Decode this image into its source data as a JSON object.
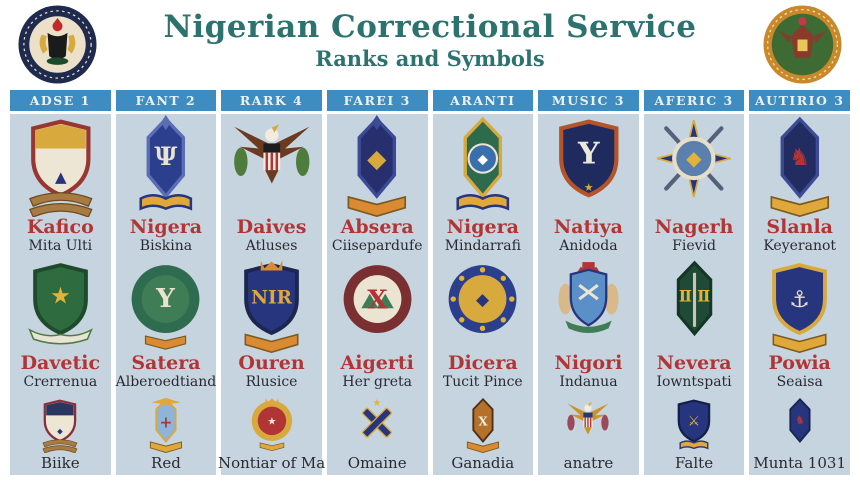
{
  "page": {
    "bg": "#ffffff",
    "panel_bg": "#c6d4df",
    "header_bar_color": "#3e8dc2",
    "title_color": "#2c7370",
    "red_label_color": "#b23535",
    "dark_label_color": "#2a2a32"
  },
  "header": {
    "title": "Nigerian Correctional Service",
    "subtitle": "Ranks and Symbols",
    "logos": {
      "left": {
        "icon": "ministry-seal-logo",
        "ring": "#1e2a4e",
        "field": "#ece0c8",
        "accent": "#c22a2a",
        "detail": "#1b1b1b",
        "gold": "#d8a93c",
        "base": "#1b4a2a"
      },
      "right": {
        "icon": "service-crest-logo",
        "ring": "#c9882a",
        "field": "#3d6b33",
        "accent": "#8a3a2a",
        "crest": "#c03a4a"
      }
    }
  },
  "columns": [
    {
      "header": "ADSE 1",
      "cells": [
        {
          "title": "Kafico",
          "subtitle": "Mita Ulti",
          "icon": "shield-eagle-ribbons-badge-icon",
          "badge": {
            "shape": "shield",
            "field": "#eee6d4",
            "border": "#993632",
            "chief": "#d8a93c",
            "emblem": "▲",
            "emblemColor": "#27357e",
            "emblemY": 80,
            "emblemSize": 18,
            "extras": [
              "ribbons"
            ],
            "extraColor": "#a87b42"
          }
        },
        {
          "title": "Davetic",
          "subtitle": "Crerrenua",
          "icon": "green-shield-laurel-badge-icon",
          "badge": {
            "shape": "shield",
            "field": "#2e6b3f",
            "border": "#1f4a2c",
            "emblem": "★",
            "emblemColor": "#e0b43a",
            "emblemY": 58,
            "emblemSize": 30,
            "extras": [
              "laurel"
            ],
            "extraColor": "#e9e5d6"
          }
        },
        {
          "title": "",
          "subtitle": "Biike",
          "icon": "navy-shield-ribbons-badge-icon",
          "badge": {
            "shape": "shield",
            "field": "#eee6d4",
            "border": "#8a2f3a",
            "chief": "#2a3560",
            "emblem": "◆",
            "emblemColor": "#27357e",
            "emblemY": 80,
            "emblemSize": 16,
            "extras": [
              "ribbons"
            ],
            "extraColor": "#a87b42"
          }
        }
      ]
    },
    {
      "header": "FANT 2",
      "cells": [
        {
          "title": "Nigera",
          "subtitle": "Biskina",
          "icon": "blue-crest-book-badge-icon",
          "badge": {
            "shape": "crest",
            "field": "#2b3f8e",
            "border": "#5a6db5",
            "emblem": "Ψ",
            "emblemColor": "#e9e2d0",
            "emblemY": 60,
            "emblemSize": 30,
            "extras": [
              "finial",
              "book"
            ],
            "extraColor": "#e0a83a"
          }
        },
        {
          "title": "Satera",
          "subtitle": "Alberoedtiand",
          "icon": "green-round-seal-badge-icon",
          "badge": {
            "shape": "round",
            "ring": "#2e6b4f",
            "center": "#3f7d57",
            "emblem": "Y",
            "emblemColor": "#e9e2d0",
            "emblemY": 62,
            "emblemSize": 34,
            "extras": [
              "bannerSmall"
            ],
            "extraColor": "#d98a33"
          }
        },
        {
          "title": "",
          "subtitle": "Red",
          "icon": "eagle-cross-banner-badge-icon",
          "badge": {
            "shape": "crest",
            "field": "#8fb3d9",
            "border": "#d8a93c",
            "emblem": "+",
            "emblemColor": "#b23535",
            "emblemY": 66,
            "emblemSize": 34,
            "extras": [
              "eagleTop",
              "banner"
            ],
            "extraColor": "#e0a83a"
          }
        }
      ]
    },
    {
      "header": "RARK 4",
      "cells": [
        {
          "title": "Daives",
          "subtitle": "Atluses",
          "icon": "brown-eagle-shield-badge-icon",
          "badge": {
            "shape": "eagle",
            "body": "#6b3a20",
            "shieldField": "#f2ece0",
            "stripe": "#b23535",
            "chief": "#1d1d1d",
            "extras": [
              "branches"
            ],
            "extraColor": "#4d7c3c"
          }
        },
        {
          "title": "Ouren",
          "subtitle": "Rlusice",
          "icon": "nir-shield-crown-badge-icon",
          "badge": {
            "shape": "shield",
            "field": "#27357e",
            "border": "#1c2650",
            "emblem": "NIR",
            "emblemColor": "#e0a83a",
            "emblemY": 58,
            "emblemSize": 24,
            "extras": [
              "crown",
              "banner"
            ],
            "extraColor": "#d98a33"
          }
        },
        {
          "title": "",
          "subtitle": "Nontiar of Ma",
          "icon": "gold-crown-round-badge-icon",
          "badge": {
            "shape": "round",
            "ring": "#d8a93c",
            "center": "#b23535",
            "emblem": "★",
            "emblemColor": "#f2ece0",
            "emblemY": 60,
            "emblemSize": 22,
            "extras": [
              "crown",
              "bannerSmall"
            ],
            "extraColor": "#e0a83a"
          }
        }
      ]
    },
    {
      "header": "FAREI 3",
      "cells": [
        {
          "title": "Absera",
          "subtitle": "Ciisepardufe",
          "icon": "navy-crest-banner-badge-icon",
          "badge": {
            "shape": "crest",
            "field": "#272f6e",
            "border": "#3d4b97",
            "emblem": "◆",
            "emblemColor": "#d8a93c",
            "emblemY": 62,
            "emblemSize": 30,
            "extras": [
              "finial",
              "banner"
            ],
            "extraColor": "#d98a33"
          }
        },
        {
          "title": "Aigerti",
          "subtitle": "Her greta",
          "icon": "round-seal-x-badge-icon",
          "badge": {
            "shape": "round",
            "ring": "#7a3030",
            "center": "#ece4d2",
            "emblem": "X",
            "emblemColor": "#b23535",
            "emblemY": 64,
            "emblemSize": 34,
            "extras": [
              "hills"
            ],
            "extraColor": "#3f7d57"
          }
        },
        {
          "title": "",
          "subtitle": "Omaine",
          "icon": "crossed-batons-star-badge-icon",
          "badge": {
            "shape": "crossed",
            "field": "#27357e",
            "trim": "#d8a93c",
            "extras": [
              "starTop"
            ],
            "extraColor": "#e0b43a"
          }
        }
      ]
    },
    {
      "header": "ARANTI",
      "cells": [
        {
          "title": "Nigera",
          "subtitle": "Mindarrafi",
          "icon": "green-crest-disc-badge-icon",
          "badge": {
            "shape": "crest",
            "field": "#2d6b4c",
            "border": "#d8a93c",
            "emblem": "◆",
            "emblemColor": "#ffffff",
            "emblemY": 58,
            "emblemSize": 16,
            "extras": [
              "disc",
              "book"
            ],
            "discColor": "#3a6fae",
            "extraColor": "#e0a83a"
          }
        },
        {
          "title": "Dicera",
          "subtitle": "Tucit Pince",
          "icon": "blue-gold-round-badge-icon",
          "badge": {
            "shape": "round",
            "ring": "#2b3f8e",
            "center": "#d8a93c",
            "emblem": "◆",
            "emblemColor": "#27357e",
            "emblemY": 60,
            "emblemSize": 22,
            "extras": [
              "ringdots"
            ],
            "extraColor": "#e0b43a"
          }
        },
        {
          "title": "",
          "subtitle": "Ganadia",
          "icon": "orange-crest-x-badge-icon",
          "badge": {
            "shape": "crest",
            "field": "#b5702a",
            "border": "#4a3018",
            "emblem": "X",
            "emblemColor": "#f2ece0",
            "emblemY": 62,
            "emblemSize": 26,
            "extras": [
              "banner"
            ],
            "extraColor": "#d98a33"
          }
        }
      ]
    },
    {
      "header": "MUSIC 3",
      "cells": [
        {
          "title": "Natiya",
          "subtitle": "Anidoda",
          "icon": "winged-y-shield-badge-icon",
          "badge": {
            "shape": "shield",
            "field": "#1f2a5e",
            "border": "#b5532a",
            "emblem": "Y",
            "emblemColor": "#ece8da",
            "emblemY": 58,
            "emblemSize": 36,
            "extras": [
              "starbelow"
            ],
            "extraColor": "#d8a93c"
          }
        },
        {
          "title": "Nigori",
          "subtitle": "Indanua",
          "icon": "coat-of-arms-badge-icon",
          "badge": {
            "shape": "arms",
            "field": "#5b8fc7",
            "crest": "#b23535",
            "supporters": "#d9b98a",
            "laurel": "#3f7d57"
          }
        },
        {
          "title": "",
          "subtitle": "anatre",
          "icon": "golden-eagle-shield-badge-icon",
          "badge": {
            "shape": "eagle",
            "body": "#c9932a",
            "shieldField": "#f2ece0",
            "stripe": "#b23535",
            "chief": "#27357e",
            "extras": [
              "branches"
            ],
            "extraColor": "#9a4a5a"
          }
        }
      ]
    },
    {
      "header": "AFERIC 3",
      "cells": [
        {
          "title": "Nagerh",
          "subtitle": "Fievid",
          "icon": "star-compass-swords-badge-icon",
          "badge": {
            "shape": "star4",
            "points": "#27357e",
            "accent": "#d8a93c",
            "ring": "#e6dec9",
            "center": "#5b80ae",
            "emblem": "◆",
            "emblemColor": "#e0b43a",
            "emblemY": 60,
            "emblemSize": 24,
            "extras": [
              "swords"
            ],
            "extraColor": "#55607a"
          }
        },
        {
          "title": "Nevera",
          "subtitle": "Iowntspati",
          "icon": "green-crest-pillars-badge-icon",
          "badge": {
            "shape": "crest",
            "field": "#1f4a35",
            "border": "#143626",
            "emblem": "Ⅱ Ⅱ",
            "emblemColor": "#e0b43a",
            "emblemY": 55,
            "emblemSize": 20,
            "extras": [
              "sword"
            ],
            "extraColor": "#c9c4b4"
          }
        },
        {
          "title": "",
          "subtitle": "Falte",
          "icon": "swords-shield-book-badge-icon",
          "badge": {
            "shape": "shield",
            "field": "#27357e",
            "border": "#14204a",
            "emblem": "⚔",
            "emblemColor": "#e0b43a",
            "emblemY": 62,
            "emblemSize": 30,
            "extras": [
              "book"
            ],
            "extraColor": "#e0a83a"
          }
        }
      ]
    },
    {
      "header": "AUTIRIO 3",
      "cells": [
        {
          "title": "Slanla",
          "subtitle": "Keyeranot",
          "icon": "navy-crest-dragon-badge-icon",
          "badge": {
            "shape": "crest",
            "field": "#222c60",
            "border": "#3d4b97",
            "emblem": "♞",
            "emblemColor": "#b23535",
            "emblemY": 60,
            "emblemSize": 28,
            "extras": [
              "banner"
            ],
            "extraColor": "#e0a83a"
          }
        },
        {
          "title": "Powia",
          "subtitle": "Seaisa",
          "icon": "anchor-shield-banner-badge-icon",
          "badge": {
            "shape": "shield",
            "field": "#27357e",
            "border": "#d8a93c",
            "emblem": "⚓",
            "emblemColor": "#e6dec9",
            "emblemY": 62,
            "emblemSize": 30,
            "extras": [
              "banner"
            ],
            "extraColor": "#e0a83a"
          }
        },
        {
          "title": "",
          "subtitle": "Munta 1031",
          "icon": "navy-crest-emblem-badge-icon",
          "badge": {
            "shape": "crest",
            "field": "#27357e",
            "border": "#1a2450",
            "emblem": "♞",
            "emblemColor": "#b23535",
            "emblemY": 58,
            "emblemSize": 24,
            "extras": [],
            "extraColor": "#e0a83a"
          }
        }
      ]
    }
  ]
}
